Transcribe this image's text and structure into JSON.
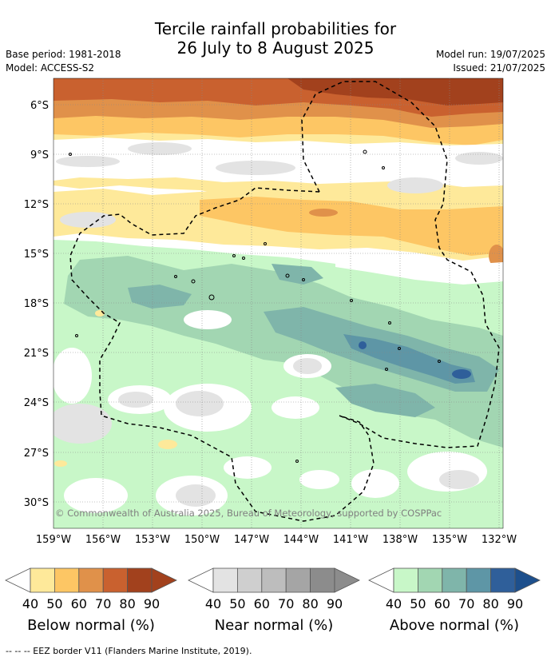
{
  "title": {
    "line1": "Tercile rainfall probabilities for",
    "line2": "26 July to 8 August 2025"
  },
  "meta": {
    "base_period": "Base period: 1981-2018",
    "model": "Model: ACCESS-S2",
    "model_run": "Model run: 19/07/2025",
    "issued": "Issued: 21/07/2025"
  },
  "map": {
    "credit": "© Commonwealth of Australia 2025, Bureau of Meteorology, supported by COSPPac",
    "lat_labels": [
      "6°S",
      "9°S",
      "12°S",
      "15°S",
      "18°S",
      "21°S",
      "24°S",
      "27°S",
      "30°S"
    ],
    "lon_labels": [
      "159°W",
      "156°W",
      "153°W",
      "150°W",
      "147°W",
      "144°W",
      "141°W",
      "138°W",
      "135°W",
      "132°W"
    ],
    "colors": {
      "below": [
        "#fee99a",
        "#fdc664",
        "#e0914a",
        "#c9612f",
        "#a2411d",
        "#a2411d"
      ],
      "near": [
        "#e3e3e3",
        "#cfcfcf",
        "#bdbdbd",
        "#a5a5a5",
        "#8c8c8c",
        "#8c8c8c"
      ],
      "above": [
        "#c8f7c8",
        "#a2d6b2",
        "#7fb5aa",
        "#5e96a6",
        "#2f5f9a",
        "#1d4f8c"
      ],
      "background": "#ffffff"
    }
  },
  "legend": {
    "ticks": [
      "40",
      "50",
      "60",
      "70",
      "80",
      "90"
    ],
    "below_title": "Below normal (%)",
    "near_title": "Near normal (%)",
    "above_title": "Above normal (%)"
  },
  "footer": "--  --  -- EEZ border V11 (Flanders Marine Institute, 2019)."
}
